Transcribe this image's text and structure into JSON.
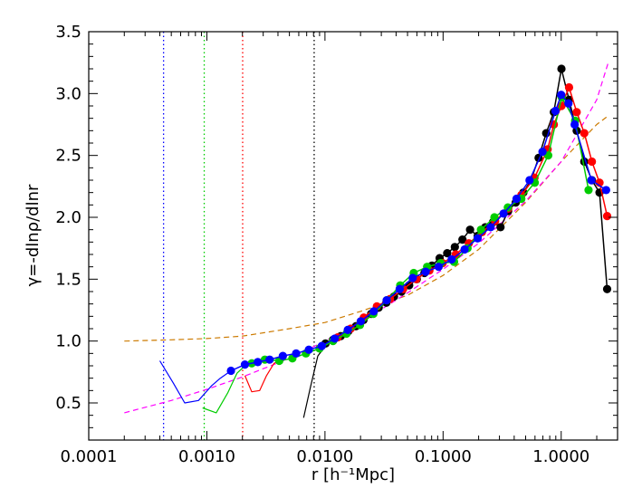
{
  "chart_data": {
    "type": "line",
    "xlabel": "r [h⁻¹Mpc]",
    "ylabel": "γ=-dlnρ/dlnr",
    "x_scale": "log",
    "xlim": [
      0.0001,
      3.0
    ],
    "ylim": [
      0.2,
      3.5
    ],
    "grid": false,
    "x_ticks": [
      {
        "value": 0.0001,
        "label": "0.0001"
      },
      {
        "value": 0.001,
        "label": "0.0010"
      },
      {
        "value": 0.01,
        "label": "0.0100"
      },
      {
        "value": 0.1,
        "label": "0.1000"
      },
      {
        "value": 1.0,
        "label": "1.0000"
      }
    ],
    "y_ticks": [
      {
        "value": 0.5,
        "label": "0.5"
      },
      {
        "value": 1.0,
        "label": "1.0"
      },
      {
        "value": 1.5,
        "label": "1.5"
      },
      {
        "value": 2.0,
        "label": "2.0"
      },
      {
        "value": 2.5,
        "label": "2.5"
      },
      {
        "value": 3.0,
        "label": "3.0"
      },
      {
        "value": 3.5,
        "label": "3.5"
      }
    ],
    "vlines": [
      {
        "x": 0.00043,
        "color": "#0000ff"
      },
      {
        "x": 0.00095,
        "color": "#00cc00"
      },
      {
        "x": 0.00201,
        "color": "#ff0000"
      },
      {
        "x": 0.0081,
        "color": "#000000"
      }
    ],
    "series": [
      {
        "color": "#cc7a00",
        "style": "dashed",
        "x": [
          0.0002,
          0.0005,
          0.001,
          0.002,
          0.005,
          0.01,
          0.02,
          0.05,
          0.1,
          0.2,
          0.5,
          1.0,
          2.0,
          2.5
        ],
        "y": [
          1.0,
          1.01,
          1.02,
          1.04,
          1.1,
          1.15,
          1.24,
          1.37,
          1.53,
          1.74,
          2.12,
          2.45,
          2.75,
          2.82
        ]
      },
      {
        "color": "#ff00ff",
        "style": "dashed",
        "x": [
          0.0002,
          0.0005,
          0.001,
          0.002,
          0.005,
          0.01,
          0.02,
          0.05,
          0.1,
          0.2,
          0.5,
          1.0,
          2.0,
          2.5
        ],
        "y": [
          0.42,
          0.52,
          0.61,
          0.71,
          0.86,
          1.0,
          1.15,
          1.39,
          1.58,
          1.79,
          2.13,
          2.45,
          2.95,
          3.25
        ]
      },
      {
        "color": "#000000",
        "style": "solid",
        "x": [
          0.0066,
          0.0075,
          0.0087,
          0.0101,
          0.0117,
          0.0136,
          0.0158
        ],
        "y": [
          0.38,
          0.62,
          0.88,
          0.96,
          1.0,
          1.04,
          1.08
        ]
      },
      {
        "color": "#ff0000",
        "style": "solid",
        "x": [
          0.0021,
          0.0024,
          0.0028,
          0.0032,
          0.0037,
          0.0043
        ],
        "y": [
          0.72,
          0.59,
          0.6,
          0.72,
          0.82,
          0.85
        ]
      },
      {
        "color": "#00cc00",
        "style": "solid",
        "x": [
          0.00092,
          0.0012,
          0.0015,
          0.0018,
          0.0021,
          0.0024
        ],
        "y": [
          0.46,
          0.42,
          0.58,
          0.74,
          0.8,
          0.82
        ]
      },
      {
        "color": "#0000ff",
        "style": "solid",
        "x": [
          0.0004,
          0.00052,
          0.00065,
          0.00085,
          0.0011,
          0.0013,
          0.0016
        ],
        "y": [
          0.84,
          0.66,
          0.5,
          0.52,
          0.64,
          0.7,
          0.76
        ]
      },
      {
        "color": "#000000",
        "style": "markers",
        "x": [
          0.0101,
          0.0117,
          0.0136,
          0.0158,
          0.0183,
          0.0212,
          0.0246,
          0.0285,
          0.0331,
          0.0384,
          0.0445,
          0.0516,
          0.0599,
          0.0695,
          0.0806,
          0.0935,
          0.1084,
          0.1258,
          0.1459,
          0.1692,
          0.1963,
          0.2277,
          0.2642,
          0.3064,
          0.3555,
          0.4124,
          0.4784,
          0.5549,
          0.6437,
          0.7467,
          0.8662,
          1.0048,
          1.1656,
          1.3521,
          1.5684,
          1.8194,
          2.1105,
          2.4482
        ],
        "y": [
          0.98,
          1.01,
          1.04,
          1.08,
          1.12,
          1.17,
          1.22,
          1.27,
          1.31,
          1.36,
          1.4,
          1.45,
          1.5,
          1.55,
          1.61,
          1.67,
          1.71,
          1.76,
          1.82,
          1.9,
          1.85,
          1.92,
          1.96,
          1.92,
          2.05,
          2.12,
          2.2,
          2.3,
          2.48,
          2.68,
          2.85,
          3.2,
          2.95,
          2.7,
          2.45,
          2.3,
          2.2,
          1.42
        ]
      },
      {
        "color": "#ff0000",
        "style": "markers",
        "x": [
          0.0128,
          0.0165,
          0.0213,
          0.0275,
          0.0355,
          0.0459,
          0.0593,
          0.0766,
          0.099,
          0.1279,
          0.1652,
          0.2134,
          0.2757,
          0.3562,
          0.4602,
          0.5945,
          0.768,
          0.8662,
          1.0048,
          1.1656,
          1.3521,
          1.5684,
          1.8194,
          2.1105,
          2.4482
        ],
        "y": [
          1.03,
          1.1,
          1.19,
          1.28,
          1.34,
          1.42,
          1.5,
          1.57,
          1.63,
          1.7,
          1.79,
          1.88,
          1.97,
          2.07,
          2.18,
          2.32,
          2.55,
          2.75,
          2.9,
          3.05,
          2.85,
          2.68,
          2.45,
          2.28,
          2.01
        ]
      },
      {
        "color": "#00cc00",
        "style": "markers",
        "x": [
          0.0024,
          0.0031,
          0.0041,
          0.0053,
          0.0069,
          0.009,
          0.0117,
          0.0152,
          0.0198,
          0.0257,
          0.0334,
          0.0434,
          0.0564,
          0.0733,
          0.0953,
          0.1239,
          0.161,
          0.2093,
          0.272,
          0.3535,
          0.4595,
          0.5972,
          0.7762,
          1.0089,
          1.3113,
          1.7043
        ],
        "y": [
          0.82,
          0.85,
          0.84,
          0.86,
          0.9,
          0.94,
          1.0,
          1.06,
          1.13,
          1.22,
          1.33,
          1.45,
          1.55,
          1.6,
          1.63,
          1.64,
          1.75,
          1.9,
          2.0,
          2.08,
          2.15,
          2.28,
          2.5,
          2.97,
          2.78,
          2.22
        ]
      },
      {
        "color": "#0000ff",
        "style": "markers",
        "x": [
          0.0016,
          0.0021,
          0.0027,
          0.0034,
          0.0044,
          0.0057,
          0.0073,
          0.0094,
          0.0121,
          0.0156,
          0.0201,
          0.0259,
          0.0333,
          0.0429,
          0.0553,
          0.0712,
          0.0917,
          0.1181,
          0.1521,
          0.196,
          0.2524,
          0.3251,
          0.4187,
          0.5393,
          0.6946,
          0.8946,
          1.0,
          1.152,
          1.3,
          1.8,
          2.4
        ],
        "y": [
          0.76,
          0.81,
          0.83,
          0.85,
          0.88,
          0.9,
          0.93,
          0.96,
          1.02,
          1.09,
          1.16,
          1.24,
          1.33,
          1.42,
          1.51,
          1.56,
          1.6,
          1.66,
          1.74,
          1.83,
          1.92,
          2.03,
          2.15,
          2.3,
          2.53,
          2.86,
          2.99,
          2.92,
          2.75,
          2.3,
          2.22
        ]
      }
    ]
  }
}
